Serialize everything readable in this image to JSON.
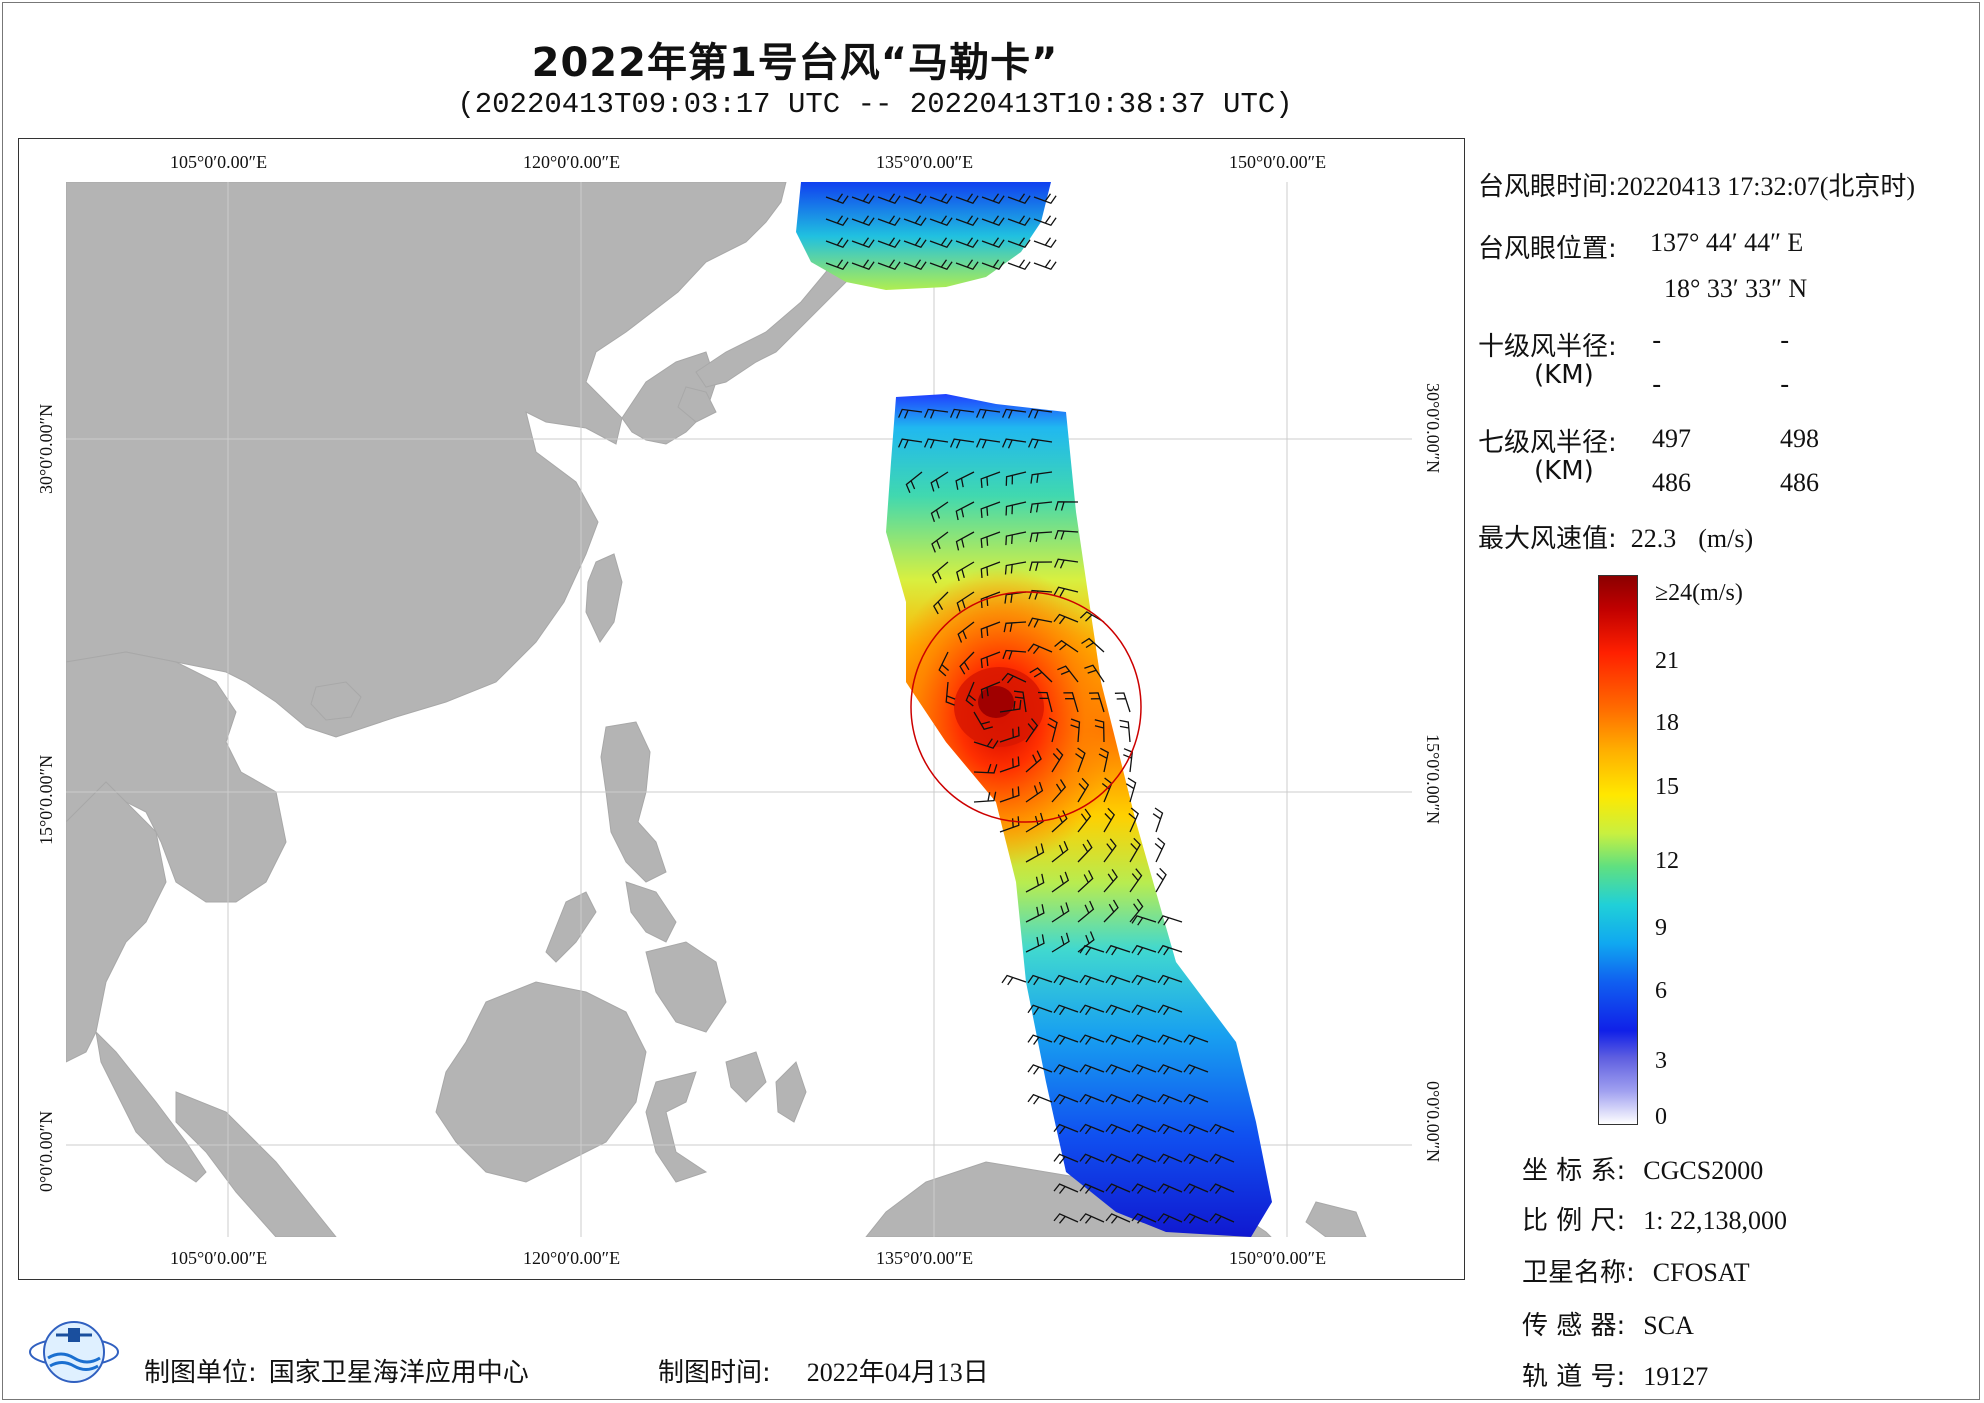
{
  "title": "2022年第1号台风“马勒卡”",
  "subtitle": "(20220413T09:03:17 UTC -- 20220413T10:38:37 UTC)",
  "map": {
    "lon_labels": [
      "105°0′0.00″E",
      "120°0′0.00″E",
      "135°0′0.00″E",
      "150°0′0.00″E"
    ],
    "lat_labels": [
      "30°0′0.00″N",
      "15°0′0.00″N",
      "0°0′0.00″N"
    ],
    "colors": {
      "land": "#b4b4b4",
      "sea": "#ffffff",
      "grid": "#cccccc",
      "radius_circle": "#cc0000"
    }
  },
  "info": {
    "eye_time_label": "台风眼时间:",
    "eye_time_value": "20220413 17:32:07(北京时)",
    "eye_pos_label": "台风眼位置:",
    "eye_lon": "137° 44′ 44″ E",
    "eye_lat": "18° 33′ 33″ N",
    "r10_label": "十级风半径:",
    "km_label": "(KM)",
    "r10_values": [
      "-",
      "-",
      "-",
      "-"
    ],
    "r7_label": "七级风半径:",
    "r7_values": [
      "497",
      "498",
      "486",
      "486"
    ],
    "maxwind_label": "最大风速值:",
    "maxwind_value": "22.3",
    "maxwind_unit": "(m/s)"
  },
  "colorbar": {
    "ticks": [
      "≥24(m/s)",
      "21",
      "18",
      "15",
      "12",
      "9",
      "6",
      "3",
      "0"
    ]
  },
  "meta": {
    "crs_label": "坐 标 系:",
    "crs_value": "CGCS2000",
    "scale_label": "比 例 尺:",
    "scale_value": "1: 22,138,000",
    "satellite_label": "卫星名称:",
    "satellite_value": "CFOSAT",
    "sensor_label": "传 感 器:",
    "sensor_value": "SCA",
    "orbit_label": "轨 道 号:",
    "orbit_value": "19127"
  },
  "footer": {
    "maker_label": "制图单位:",
    "maker_value": "国家卫星海洋应用中心",
    "date_label": "制图时间:",
    "date_value": "2022年04月13日"
  }
}
